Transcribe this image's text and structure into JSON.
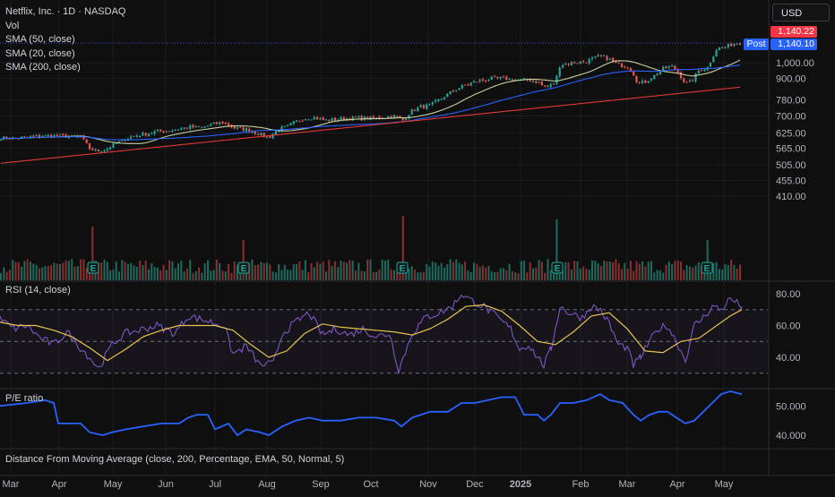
{
  "header": {
    "title": "Netflix, Inc. · 1D · NASDAQ",
    "vol_label": "Vol",
    "sma_labels": [
      "SMA (50, close)",
      "SMA (20, close)",
      "SMA (200, close)"
    ],
    "currency": "USD"
  },
  "price_tags": {
    "last": "1,140.22",
    "post_label": "Post",
    "post": "1,140.10"
  },
  "panes": {
    "rsi_label": "RSI (14, close)",
    "pe_label": "P/E ratio",
    "dma_label": "Distance From Moving Average (close, 200, Percentage, EMA, 50, Normal, 5)"
  },
  "colors": {
    "up": "#26a69a",
    "down": "#ef5350",
    "sma50": "#2962ff",
    "sma20": "#c5d19a",
    "sma200": "#e53935",
    "rsi": "#7e57c2",
    "rsi_ma": "#e6c44e",
    "pe": "#2962ff"
  },
  "chart_data": [
    {
      "type": "candlestick",
      "title": "Netflix, Inc. · 1D · NASDAQ",
      "y_scale": "log",
      "y_ticks": [
        "1,000.00",
        "900.00",
        "780.00",
        "700.00",
        "625.00",
        "565.00",
        "505.00",
        "455.00",
        "410.00"
      ],
      "x_ticks": [
        "Mar",
        "Apr",
        "May",
        "Jun",
        "Jul",
        "Aug",
        "Sep",
        "Oct",
        "Nov",
        "Dec",
        "2025",
        "Feb",
        "Mar",
        "Apr",
        "May"
      ],
      "close_path": [
        [
          0,
          605
        ],
        [
          18,
          603
        ],
        [
          38,
          610
        ],
        [
          50,
          613
        ],
        [
          62,
          612
        ],
        [
          72,
          612
        ],
        [
          80,
          607
        ],
        [
          90,
          610
        ],
        [
          100,
          563
        ],
        [
          108,
          553
        ],
        [
          118,
          560
        ],
        [
          130,
          583
        ],
        [
          145,
          608
        ],
        [
          160,
          620
        ],
        [
          175,
          630
        ],
        [
          192,
          636
        ],
        [
          210,
          650
        ],
        [
          225,
          648
        ],
        [
          240,
          665
        ],
        [
          250,
          670
        ],
        [
          262,
          645
        ],
        [
          275,
          640
        ],
        [
          290,
          620
        ],
        [
          300,
          605
        ],
        [
          310,
          640
        ],
        [
          320,
          650
        ],
        [
          330,
          675
        ],
        [
          340,
          690
        ],
        [
          350,
          693
        ],
        [
          362,
          680
        ],
        [
          375,
          683
        ],
        [
          390,
          690
        ],
        [
          405,
          690
        ],
        [
          420,
          690
        ],
        [
          440,
          700
        ],
        [
          450,
          680
        ],
        [
          458,
          720
        ],
        [
          470,
          745
        ],
        [
          480,
          750
        ],
        [
          490,
          780
        ],
        [
          500,
          810
        ],
        [
          510,
          840
        ],
        [
          520,
          860
        ],
        [
          530,
          880
        ],
        [
          540,
          890
        ],
        [
          550,
          900
        ],
        [
          560,
          900
        ],
        [
          570,
          895
        ],
        [
          580,
          890
        ],
        [
          590,
          892
        ],
        [
          600,
          880
        ],
        [
          607,
          850
        ],
        [
          615,
          860
        ],
        [
          620,
          880
        ],
        [
          625,
          985
        ],
        [
          640,
          1000
        ],
        [
          655,
          1010
        ],
        [
          670,
          1045
        ],
        [
          680,
          1025
        ],
        [
          690,
          985
        ],
        [
          700,
          980
        ],
        [
          707,
          930
        ],
        [
          712,
          870
        ],
        [
          720,
          880
        ],
        [
          730,
          915
        ],
        [
          740,
          960
        ],
        [
          750,
          975
        ],
        [
          758,
          930
        ],
        [
          765,
          870
        ],
        [
          772,
          880
        ],
        [
          780,
          950
        ],
        [
          790,
          970
        ],
        [
          800,
          1100
        ],
        [
          810,
          1110
        ],
        [
          820,
          1140
        ],
        [
          828,
          1140.22
        ]
      ],
      "last_price": "1,140.22",
      "post_price": "1,140.10",
      "earnings_markers": [
        "E",
        "E",
        "E",
        "E",
        "E"
      ]
    },
    {
      "type": "line",
      "title": "RSI (14, close)",
      "y_ticks": [
        "80.00",
        "60.00",
        "40.00"
      ],
      "bands": [
        70,
        50,
        30
      ],
      "series": [
        {
          "values": [
            [
              0,
              64
            ],
            [
              15,
              58
            ],
            [
              30,
              60
            ],
            [
              45,
              52
            ],
            [
              60,
              48
            ],
            [
              75,
              56
            ],
            [
              85,
              49
            ],
            [
              100,
              40
            ],
            [
              110,
              33
            ],
            [
              125,
              48
            ],
            [
              140,
              55
            ],
            [
              155,
              57
            ],
            [
              175,
              60
            ],
            [
              195,
              55
            ],
            [
              210,
              66
            ],
            [
              230,
              63
            ],
            [
              250,
              60
            ],
            [
              260,
              42
            ],
            [
              275,
              47
            ],
            [
              290,
              35
            ],
            [
              305,
              36
            ],
            [
              315,
              55
            ],
            [
              330,
              62
            ],
            [
              345,
              68
            ],
            [
              360,
              54
            ],
            [
              375,
              58
            ],
            [
              390,
              54
            ],
            [
              405,
              58
            ],
            [
              420,
              53
            ],
            [
              435,
              55
            ],
            [
              445,
              32
            ],
            [
              460,
              55
            ],
            [
              475,
              65
            ],
            [
              490,
              68
            ],
            [
              505,
              72
            ],
            [
              515,
              80
            ],
            [
              525,
              76
            ],
            [
              540,
              72
            ],
            [
              555,
              65
            ],
            [
              570,
              58
            ],
            [
              580,
              45
            ],
            [
              590,
              48
            ],
            [
              600,
              40
            ],
            [
              607,
              35
            ],
            [
              615,
              45
            ],
            [
              625,
              72
            ],
            [
              635,
              68
            ],
            [
              650,
              65
            ],
            [
              660,
              72
            ],
            [
              670,
              70
            ],
            [
              680,
              61
            ],
            [
              690,
              48
            ],
            [
              700,
              46
            ],
            [
              707,
              35
            ],
            [
              715,
              40
            ],
            [
              725,
              50
            ],
            [
              735,
              58
            ],
            [
              745,
              60
            ],
            [
              755,
              50
            ],
            [
              765,
              38
            ],
            [
              775,
              60
            ],
            [
              785,
              65
            ],
            [
              795,
              72
            ],
            [
              805,
              70
            ],
            [
              815,
              77
            ],
            [
              828,
              72
            ]
          ]
        },
        {
          "values": [
            [
              0,
              62
            ],
            [
              20,
              60
            ],
            [
              40,
              60
            ],
            [
              60,
              57
            ],
            [
              80,
              53
            ],
            [
              100,
              46
            ],
            [
              120,
              38
            ],
            [
              140,
              45
            ],
            [
              160,
              53
            ],
            [
              180,
              57
            ],
            [
              200,
              60
            ],
            [
              220,
              60
            ],
            [
              240,
              60
            ],
            [
              260,
              57
            ],
            [
              280,
              48
            ],
            [
              300,
              40
            ],
            [
              320,
              44
            ],
            [
              340,
              55
            ],
            [
              360,
              61
            ],
            [
              380,
              59
            ],
            [
              400,
              58
            ],
            [
              420,
              57
            ],
            [
              440,
              56
            ],
            [
              460,
              54
            ],
            [
              480,
              58
            ],
            [
              500,
              64
            ],
            [
              520,
              72
            ],
            [
              540,
              73
            ],
            [
              560,
              69
            ],
            [
              580,
              60
            ],
            [
              600,
              50
            ],
            [
              620,
              48
            ],
            [
              640,
              56
            ],
            [
              660,
              66
            ],
            [
              680,
              68
            ],
            [
              700,
              58
            ],
            [
              720,
              44
            ],
            [
              740,
              43
            ],
            [
              760,
              50
            ],
            [
              780,
              52
            ],
            [
              800,
              60
            ],
            [
              815,
              66
            ],
            [
              828,
              70
            ]
          ]
        }
      ]
    },
    {
      "type": "line",
      "title": "P/E ratio",
      "y_ticks": [
        "50.000",
        "40.000"
      ],
      "series": [
        {
          "values": [
            [
              0,
              50
            ],
            [
              30,
              51
            ],
            [
              50,
              52
            ],
            [
              60,
              51
            ],
            [
              65,
              44
            ],
            [
              90,
              44
            ],
            [
              100,
              41
            ],
            [
              115,
              40
            ],
            [
              125,
              41
            ],
            [
              140,
              42
            ],
            [
              160,
              43
            ],
            [
              180,
              44
            ],
            [
              200,
              44
            ],
            [
              210,
              46
            ],
            [
              220,
              47
            ],
            [
              232,
              47
            ],
            [
              240,
              42
            ],
            [
              255,
              44
            ],
            [
              265,
              40
            ],
            [
              275,
              42
            ],
            [
              290,
              41
            ],
            [
              300,
              40
            ],
            [
              315,
              43
            ],
            [
              330,
              45
            ],
            [
              345,
              46
            ],
            [
              360,
              45
            ],
            [
              380,
              45
            ],
            [
              400,
              46
            ],
            [
              420,
              46
            ],
            [
              440,
              45
            ],
            [
              448,
              43
            ],
            [
              460,
              46
            ],
            [
              480,
              48
            ],
            [
              500,
              48
            ],
            [
              515,
              51
            ],
            [
              530,
              51
            ],
            [
              545,
              52
            ],
            [
              560,
              53
            ],
            [
              575,
              53
            ],
            [
              585,
              47
            ],
            [
              600,
              47
            ],
            [
              607,
              45
            ],
            [
              615,
              47
            ],
            [
              625,
              51
            ],
            [
              640,
              51
            ],
            [
              655,
              52
            ],
            [
              670,
              54
            ],
            [
              680,
              52
            ],
            [
              695,
              51
            ],
            [
              707,
              47
            ],
            [
              715,
              45
            ],
            [
              725,
              47
            ],
            [
              735,
              48
            ],
            [
              745,
              48
            ],
            [
              755,
              46
            ],
            [
              765,
              44
            ],
            [
              775,
              45
            ],
            [
              785,
              48
            ],
            [
              795,
              51
            ],
            [
              805,
              54
            ],
            [
              815,
              55
            ],
            [
              828,
              54
            ]
          ]
        }
      ]
    }
  ]
}
